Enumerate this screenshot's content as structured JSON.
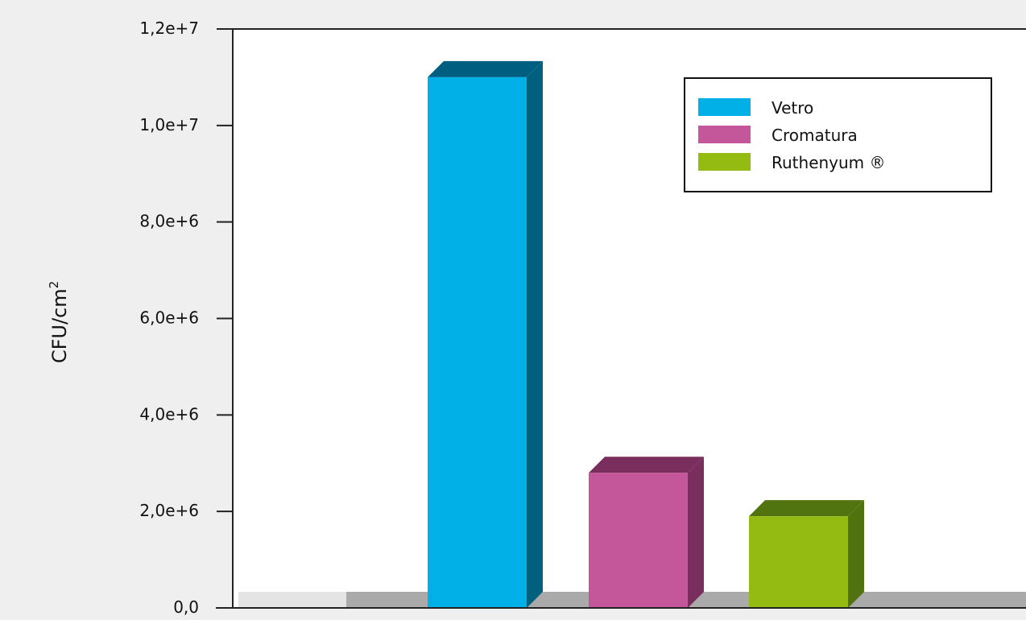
{
  "chart_data": {
    "type": "bar",
    "title": "",
    "xlabel": "",
    "ylabel": "CFU/cm",
    "ylabel_superscript": "2",
    "ylim": [
      0,
      12000000
    ],
    "yticks": [
      {
        "value": 0,
        "label": "0,0"
      },
      {
        "value": 2000000,
        "label": "2,0e+6"
      },
      {
        "value": 4000000,
        "label": "4,0e+6"
      },
      {
        "value": 6000000,
        "label": "6,0e+6"
      },
      {
        "value": 8000000,
        "label": "8,0e+6"
      },
      {
        "value": 10000000,
        "label": "1,0e+7"
      },
      {
        "value": 12000000,
        "label": "1,2e+7"
      }
    ],
    "grid": false,
    "legend": "top-right",
    "series": [
      {
        "name": "Vetro",
        "value": 11000000,
        "color": "#00b0e6",
        "side_color": "#00607e",
        "top_color": "#005f80"
      },
      {
        "name": "Cromatura",
        "value": 2800000,
        "color": "#c4569a",
        "side_color": "#7a2e5e",
        "top_color": "#7a2e5e"
      },
      {
        "name": "Ruthenyum ®",
        "value": 1900000,
        "color": "#93bb12",
        "side_color": "#507310",
        "top_color": "#527410"
      }
    ]
  }
}
